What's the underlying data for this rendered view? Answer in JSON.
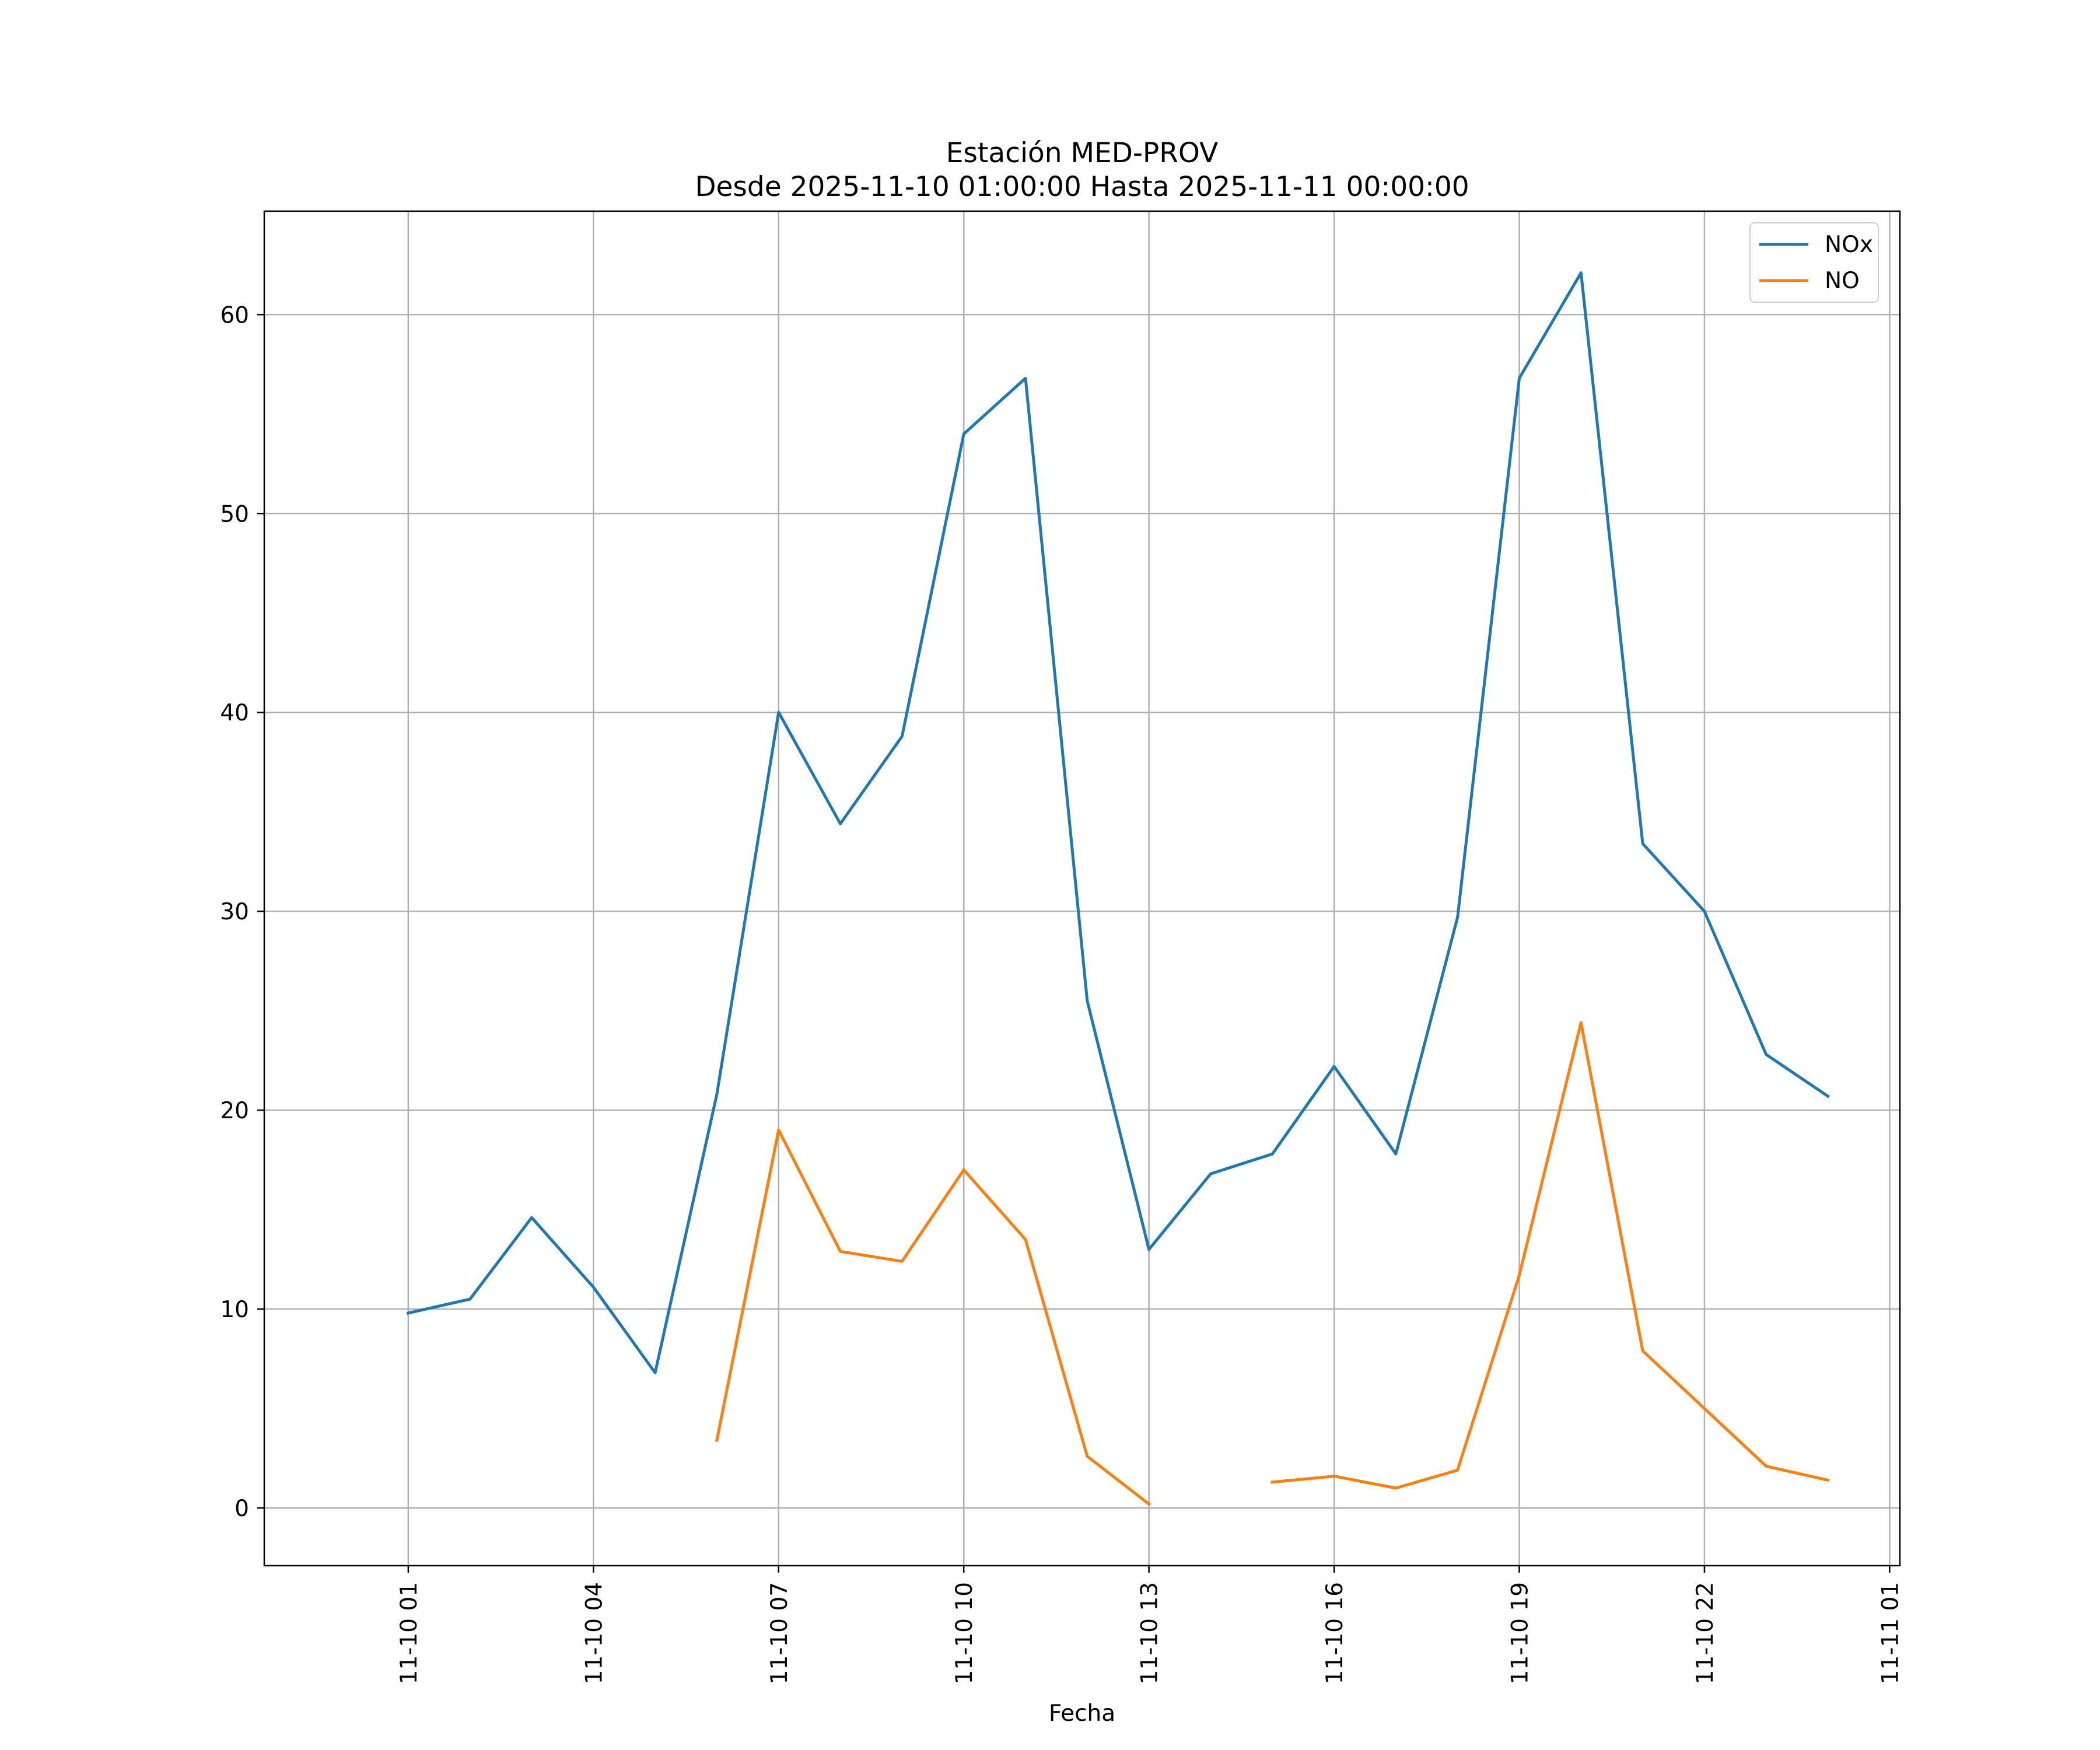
{
  "chart_data": {
    "type": "line",
    "title": "Estación MED-PROV",
    "subtitle": "Desde 2025-11-10 01:00:00 Hasta 2025-11-11 00:00:00",
    "xlabel": "Fecha",
    "ylabel": "",
    "x": [
      "2025-11-10 01:00",
      "2025-11-10 02:00",
      "2025-11-10 03:00",
      "2025-11-10 04:00",
      "2025-11-10 05:00",
      "2025-11-10 06:00",
      "2025-11-10 07:00",
      "2025-11-10 08:00",
      "2025-11-10 09:00",
      "2025-11-10 10:00",
      "2025-11-10 11:00",
      "2025-11-10 12:00",
      "2025-11-10 13:00",
      "2025-11-10 14:00",
      "2025-11-10 15:00",
      "2025-11-10 16:00",
      "2025-11-10 17:00",
      "2025-11-10 18:00",
      "2025-11-10 19:00",
      "2025-11-10 20:00",
      "2025-11-10 21:00",
      "2025-11-10 22:00",
      "2025-11-10 23:00",
      "2025-11-11 00:00"
    ],
    "series": [
      {
        "name": "NOx",
        "color": "#1f77b4",
        "values": [
          9.8,
          10.5,
          14.6,
          11.1,
          6.8,
          20.8,
          40.0,
          34.4,
          38.8,
          54.0,
          56.8,
          25.5,
          13.0,
          16.8,
          17.8,
          22.2,
          17.8,
          29.7,
          56.8,
          62.1,
          33.4,
          30.0,
          22.8,
          20.7
        ]
      },
      {
        "name": "NO",
        "color": "#ff7f0e",
        "values": [
          null,
          null,
          null,
          null,
          null,
          3.4,
          19.0,
          12.9,
          12.4,
          17.0,
          13.5,
          2.6,
          0.2,
          null,
          1.3,
          1.6,
          1.0,
          1.9,
          11.7,
          24.4,
          7.9,
          5.0,
          2.1,
          1.4
        ]
      }
    ],
    "x_ticks": [
      "11-10 01",
      "11-10 04",
      "11-10 07",
      "11-10 10",
      "11-10 13",
      "11-10 16",
      "11-10 19",
      "11-10 22",
      "11-11 01"
    ],
    "y_ticks": [
      "0",
      "10",
      "20",
      "30",
      "40",
      "50",
      "60"
    ],
    "xlim": [
      "2025-11-09 22:40",
      "2025-11-11 01:10"
    ],
    "ylim": [
      -2.9,
      65.2
    ],
    "grid": true,
    "legend_position": "top-right"
  }
}
